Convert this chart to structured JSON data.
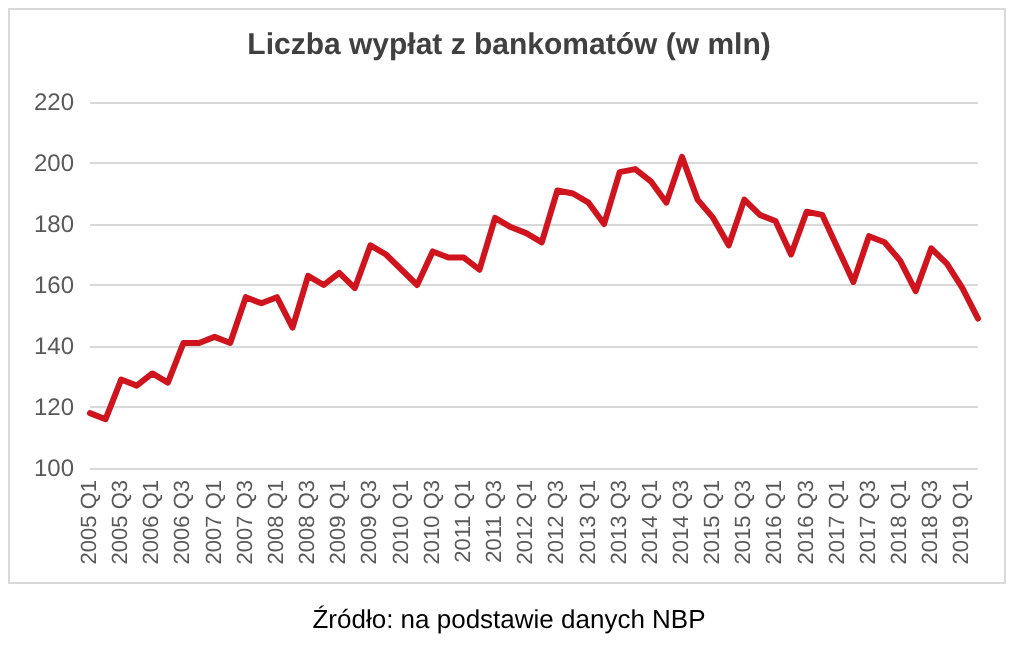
{
  "chart_data": {
    "type": "line",
    "title": "Liczba wypłat z bankomatów (w mln)",
    "annotations": [
      "Źródło: na podstawie danych NBP"
    ],
    "categories": [
      "2005 Q1",
      null,
      "2005 Q3",
      null,
      "2006 Q1",
      null,
      "2006 Q3",
      null,
      "2007 Q1",
      null,
      "2007 Q3",
      null,
      "2008 Q1",
      null,
      "2008 Q3",
      null,
      "2009 Q1",
      null,
      "2009 Q3",
      null,
      "2010 Q1",
      null,
      "2010 Q3",
      null,
      "2011 Q1",
      null,
      "2011 Q3",
      null,
      "2012 Q1",
      null,
      "2012 Q3",
      null,
      "2013 Q1",
      null,
      "2013 Q3",
      null,
      "2014 Q1",
      null,
      "2014 Q3",
      null,
      "2015 Q1",
      null,
      "2015 Q3",
      null,
      "2016 Q1",
      null,
      "2016 Q3",
      null,
      "2017 Q1",
      null,
      "2017 Q3",
      null,
      "2018 Q1",
      null,
      "2018 Q3",
      null,
      "2019 Q1",
      null
    ],
    "series": [
      {
        "color": "#d0141e",
        "values": [
          118,
          116,
          129,
          127,
          131,
          128,
          141,
          141,
          143,
          141,
          156,
          154,
          156,
          146,
          163,
          160,
          164,
          159,
          173,
          170,
          165,
          160,
          171,
          169,
          169,
          165,
          182,
          179,
          177,
          174,
          191,
          190,
          187,
          180,
          197,
          198,
          194,
          187,
          202,
          188,
          182,
          173,
          188,
          183,
          181,
          170,
          184,
          183,
          172,
          161,
          176,
          174,
          168,
          158,
          172,
          167,
          159,
          149
        ]
      }
    ],
    "ylim": [
      100,
      220
    ],
    "yticks": [
      100,
      120,
      140,
      160,
      180,
      200,
      220
    ],
    "grid": "y",
    "marker": "none",
    "line_style": "solid"
  }
}
